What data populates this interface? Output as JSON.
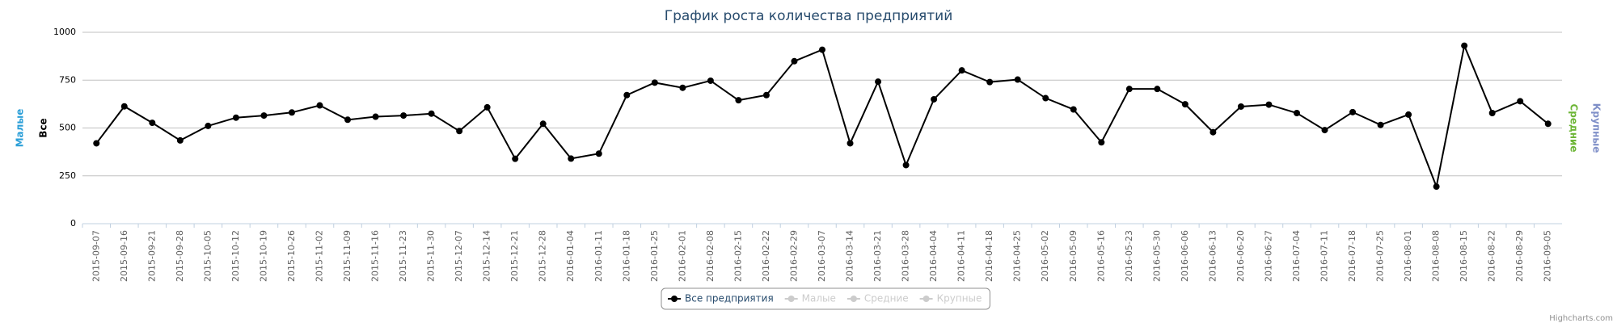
{
  "chart_data": {
    "type": "line",
    "title": "График роста количества предприятий",
    "categories": [
      "2015-09-07",
      "2015-09-16",
      "2015-09-21",
      "2015-09-28",
      "2015-10-05",
      "2015-10-12",
      "2015-10-19",
      "2015-10-26",
      "2015-11-02",
      "2015-11-09",
      "2015-11-16",
      "2015-11-23",
      "2015-11-30",
      "2015-12-07",
      "2015-12-14",
      "2015-12-21",
      "2015-12-28",
      "2016-01-04",
      "2016-01-11",
      "2016-01-18",
      "2016-01-25",
      "2016-02-01",
      "2016-02-08",
      "2016-02-15",
      "2016-02-22",
      "2016-02-29",
      "2016-03-07",
      "2016-03-14",
      "2016-03-21",
      "2016-03-28",
      "2016-04-04",
      "2016-04-11",
      "2016-04-18",
      "2016-04-25",
      "2016-05-02",
      "2016-05-09",
      "2016-05-16",
      "2016-05-23",
      "2016-05-30",
      "2016-06-06",
      "2016-06-13",
      "2016-06-20",
      "2016-06-27",
      "2016-07-04",
      "2016-07-11",
      "2016-07-18",
      "2016-07-25",
      "2016-08-01",
      "2016-08-08",
      "2016-08-15",
      "2016-08-22",
      "2016-08-29",
      "2016-09-05"
    ],
    "series": [
      {
        "name": "Все предприятия",
        "color": "#000000",
        "values": [
          420,
          613,
          527,
          435,
          511,
          554,
          565,
          581,
          618,
          543,
          559,
          565,
          575,
          484,
          608,
          339,
          522,
          340,
          366,
          672,
          737,
          710,
          747,
          645,
          672,
          849,
          909,
          420,
          742,
          306,
          650,
          801,
          740,
          753,
          656,
          597,
          425,
          704,
          704,
          624,
          478,
          612,
          622,
          578,
          489,
          583,
          516,
          570,
          194,
          930,
          578,
          640,
          522
        ]
      }
    ],
    "hidden_series": [
      {
        "name": "Малые",
        "color": "#cccccc"
      },
      {
        "name": "Средние",
        "color": "#cccccc"
      },
      {
        "name": "Крупные",
        "color": "#cccccc"
      }
    ],
    "y_axis_titles_left": [
      {
        "text": "Малые",
        "color": "#2b9fd8"
      },
      {
        "text": "Все",
        "color": "#000000"
      }
    ],
    "y_axis_titles_right": [
      {
        "text": "Средние",
        "color": "#6cb535"
      },
      {
        "text": "Крупные",
        "color": "#8090c8"
      }
    ],
    "ylim": [
      0,
      1000
    ],
    "yticks": [
      0,
      250,
      500,
      750,
      1000
    ],
    "grid": true,
    "credits": "Highcharts.com"
  }
}
